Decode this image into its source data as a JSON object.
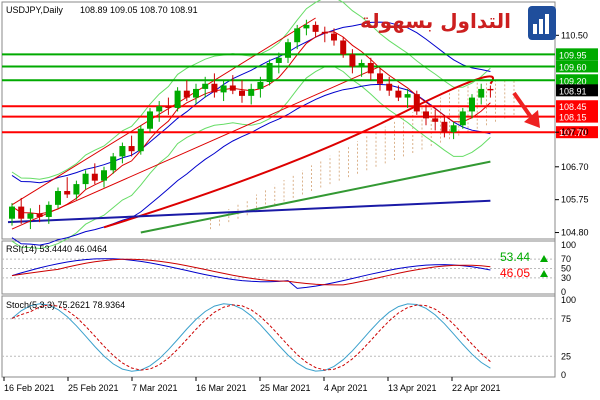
{
  "chart_data": [
    {
      "type": "candlestick",
      "title": "USDJPY,Daily",
      "ohlc_text": "108.89 109.05 108.70 108.91",
      "watermark_text": "التداول بسهولة",
      "price_ticks": [
        "110.50",
        "107.70",
        "106.70",
        "105.75",
        "104.80"
      ],
      "last_price": "108.91",
      "levels": [
        {
          "label": "109.95",
          "value": 109.95,
          "color": "#00aa00"
        },
        {
          "label": "109.60",
          "value": 109.6,
          "color": "#00aa00"
        },
        {
          "label": "109.20",
          "value": 109.2,
          "color": "#00aa00"
        },
        {
          "label": "108.45",
          "value": 108.45,
          "color": "#ff0000"
        },
        {
          "label": "108.15",
          "value": 108.15,
          "color": "#ff0000"
        },
        {
          "label": "107.70",
          "value": 107.7,
          "color": "#ff0000"
        }
      ],
      "ylim": [
        104.7,
        111.0
      ],
      "candles": [
        [
          105.2,
          105.65,
          105.0,
          105.55
        ],
        [
          105.55,
          105.8,
          105.05,
          105.2
        ],
        [
          105.2,
          105.5,
          104.9,
          105.35
        ],
        [
          105.35,
          105.6,
          105.1,
          105.25
        ],
        [
          105.25,
          105.7,
          105.05,
          105.6
        ],
        [
          105.6,
          106.1,
          105.5,
          106.0
        ],
        [
          106.0,
          106.4,
          105.8,
          105.9
        ],
        [
          105.9,
          106.3,
          105.75,
          106.2
        ],
        [
          106.2,
          106.6,
          106.05,
          106.5
        ],
        [
          106.5,
          106.8,
          106.2,
          106.3
        ],
        [
          106.3,
          106.7,
          106.1,
          106.6
        ],
        [
          106.6,
          107.1,
          106.5,
          107.0
        ],
        [
          107.0,
          107.4,
          106.8,
          107.3
        ],
        [
          107.3,
          107.6,
          107.0,
          107.15
        ],
        [
          107.15,
          107.9,
          107.05,
          107.8
        ],
        [
          107.8,
          108.4,
          107.7,
          108.3
        ],
        [
          108.3,
          108.6,
          108.0,
          108.45
        ],
        [
          108.45,
          108.7,
          108.2,
          108.4
        ],
        [
          108.4,
          109.0,
          108.3,
          108.9
        ],
        [
          108.9,
          109.2,
          108.6,
          108.7
        ],
        [
          108.7,
          109.1,
          108.5,
          108.95
        ],
        [
          108.95,
          109.3,
          108.7,
          109.1
        ],
        [
          109.1,
          109.4,
          108.7,
          108.85
        ],
        [
          108.85,
          109.2,
          108.6,
          109.05
        ],
        [
          109.05,
          109.35,
          108.8,
          108.9
        ],
        [
          108.9,
          109.2,
          108.55,
          108.75
        ],
        [
          108.75,
          109.1,
          108.5,
          108.95
        ],
        [
          108.95,
          109.3,
          108.7,
          109.15
        ],
        [
          109.15,
          109.8,
          109.05,
          109.7
        ],
        [
          109.7,
          110.0,
          109.4,
          109.85
        ],
        [
          109.85,
          110.4,
          109.7,
          110.3
        ],
        [
          110.3,
          110.8,
          110.1,
          110.7
        ],
        [
          110.7,
          110.95,
          110.5,
          110.8
        ],
        [
          110.8,
          110.9,
          110.45,
          110.6
        ],
        [
          110.6,
          110.75,
          110.3,
          110.55
        ],
        [
          110.55,
          110.7,
          110.2,
          110.35
        ],
        [
          110.35,
          110.45,
          109.85,
          109.95
        ],
        [
          109.95,
          110.1,
          109.4,
          109.6
        ],
        [
          109.6,
          109.8,
          109.3,
          109.7
        ],
        [
          109.7,
          109.85,
          109.2,
          109.4
        ],
        [
          109.4,
          109.55,
          108.9,
          109.1
        ],
        [
          109.1,
          109.3,
          108.75,
          108.9
        ],
        [
          108.9,
          109.05,
          108.6,
          108.7
        ],
        [
          108.7,
          108.95,
          108.4,
          108.8
        ],
        [
          108.8,
          108.9,
          108.2,
          108.3
        ],
        [
          108.3,
          108.5,
          107.9,
          108.1
        ],
        [
          108.1,
          108.35,
          107.75,
          108.0
        ],
        [
          108.0,
          108.2,
          107.55,
          107.7
        ],
        [
          107.7,
          108.0,
          107.5,
          107.9
        ],
        [
          107.9,
          108.4,
          107.8,
          108.3
        ],
        [
          108.3,
          108.8,
          108.1,
          108.7
        ],
        [
          108.7,
          109.1,
          108.5,
          108.95
        ],
        [
          108.95,
          109.05,
          108.7,
          108.91
        ]
      ],
      "indicators": [
        "MA red",
        "MA green",
        "MA blue",
        "Bollinger Bands",
        "Envelope",
        "Ichimoku cloud"
      ]
    },
    {
      "type": "line",
      "title": "RSI(14) 53.4440 46.0464",
      "series": [
        {
          "name": "RSI",
          "color": "#0000cc",
          "label": "53.44",
          "label_color": "#00aa00"
        },
        {
          "name": "Signal",
          "color": "#cc0000",
          "label": "46.05",
          "label_color": "#ff0000"
        }
      ],
      "yticks": [
        "100",
        "70",
        "50",
        "30",
        "0"
      ],
      "ylim": [
        0,
        100
      ]
    },
    {
      "type": "line",
      "title": "Stoch(5,3,3) 75.2621 78.9364",
      "series": [
        {
          "name": "%K",
          "color": "#3aa0cc",
          "style": "solid"
        },
        {
          "name": "%D",
          "color": "#cc0000",
          "style": "dashed"
        }
      ],
      "yticks": [
        "100",
        "75",
        "25",
        "0"
      ],
      "ylim": [
        0,
        100
      ]
    }
  ],
  "x_labels": [
    "16 Feb 2021",
    "25 Feb 2021",
    "7 Mar 2021",
    "16 Mar 2021",
    "25 Mar 2021",
    "4 Apr 2021",
    "13 Apr 2021",
    "22 Apr 2021"
  ],
  "colors": {
    "bull": "#00aa00",
    "bear": "#cc0000",
    "ma_red": "#dd0000",
    "ma_green": "#339933",
    "ma_blue": "#1a1aa6",
    "band": "#66dd66",
    "bollinger": "#0000cc",
    "cloud": "#d2a070",
    "arrow": "#ee2222"
  }
}
